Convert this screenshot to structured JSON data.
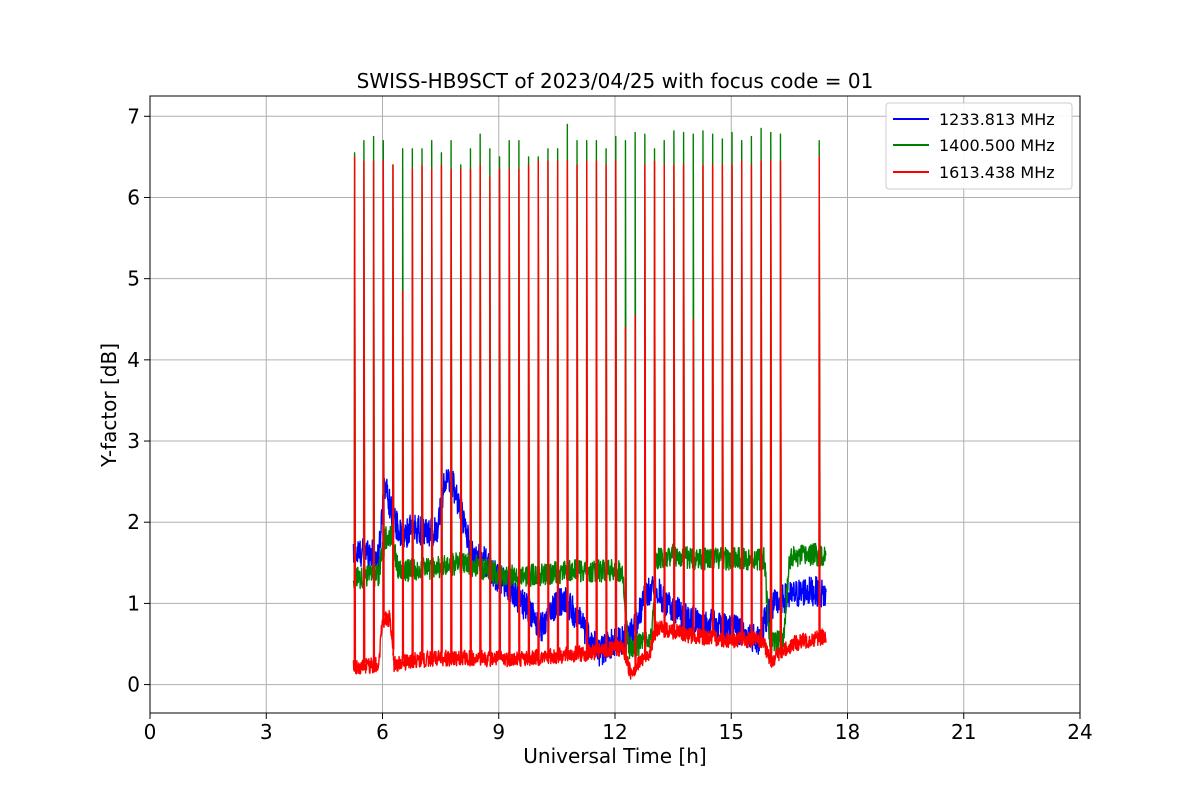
{
  "chart_data": {
    "type": "line",
    "title": "SWISS-HB9SCT of 2023/04/25 with focus code = 01",
    "xlabel": "Universal Time [h]",
    "ylabel": "Y-factor [dB]",
    "xlim": [
      0,
      24
    ],
    "ylim": [
      -0.35,
      7.25
    ],
    "xticks": [
      0,
      3,
      6,
      9,
      12,
      15,
      18,
      21,
      24
    ],
    "yticks": [
      0,
      1,
      2,
      3,
      4,
      5,
      6,
      7
    ],
    "grid": true,
    "legend_position": "top-right",
    "series": [
      {
        "name": "1233.813 MHz",
        "color": "#0000ff",
        "baseline": [
          [
            5.25,
            1.6
          ],
          [
            5.6,
            1.65
          ],
          [
            5.9,
            1.55
          ],
          [
            6.05,
            2.5
          ],
          [
            6.25,
            2.1
          ],
          [
            6.5,
            1.8
          ],
          [
            6.8,
            1.95
          ],
          [
            7.1,
            1.85
          ],
          [
            7.4,
            1.9
          ],
          [
            7.6,
            2.5
          ],
          [
            7.8,
            2.5
          ],
          [
            8.05,
            2.1
          ],
          [
            8.3,
            1.6
          ],
          [
            8.6,
            1.55
          ],
          [
            8.9,
            1.35
          ],
          [
            9.2,
            1.25
          ],
          [
            9.5,
            1.05
          ],
          [
            9.8,
            0.9
          ],
          [
            10.1,
            0.7
          ],
          [
            10.4,
            0.95
          ],
          [
            10.7,
            1.05
          ],
          [
            11.0,
            0.85
          ],
          [
            11.3,
            0.6
          ],
          [
            11.6,
            0.4
          ],
          [
            11.9,
            0.5
          ],
          [
            12.2,
            0.55
          ],
          [
            12.5,
            0.7
          ],
          [
            12.75,
            1.05
          ],
          [
            13.0,
            1.25
          ],
          [
            13.3,
            1.0
          ],
          [
            13.6,
            0.9
          ],
          [
            13.9,
            0.8
          ],
          [
            14.2,
            0.75
          ],
          [
            14.5,
            0.75
          ],
          [
            14.8,
            0.7
          ],
          [
            15.1,
            0.7
          ],
          [
            15.4,
            0.6
          ],
          [
            15.7,
            0.55
          ],
          [
            16.0,
            0.95
          ],
          [
            16.3,
            1.05
          ],
          [
            16.6,
            1.1
          ],
          [
            16.9,
            1.15
          ],
          [
            17.2,
            1.15
          ],
          [
            17.45,
            1.1
          ]
        ],
        "noise": 0.18
      },
      {
        "name": "1400.500 MHz",
        "color": "#008000",
        "baseline": [
          [
            5.25,
            1.3
          ],
          [
            5.9,
            1.35
          ],
          [
            6.05,
            1.8
          ],
          [
            6.25,
            1.85
          ],
          [
            6.4,
            1.4
          ],
          [
            7.0,
            1.42
          ],
          [
            7.5,
            1.45
          ],
          [
            8.0,
            1.5
          ],
          [
            8.5,
            1.45
          ],
          [
            9.0,
            1.35
          ],
          [
            9.5,
            1.35
          ],
          [
            10.0,
            1.35
          ],
          [
            10.5,
            1.38
          ],
          [
            11.0,
            1.4
          ],
          [
            11.5,
            1.4
          ],
          [
            12.2,
            1.4
          ],
          [
            12.35,
            0.45
          ],
          [
            12.95,
            0.55
          ],
          [
            13.05,
            1.55
          ],
          [
            13.5,
            1.6
          ],
          [
            14.0,
            1.55
          ],
          [
            14.5,
            1.55
          ],
          [
            15.0,
            1.55
          ],
          [
            15.5,
            1.55
          ],
          [
            15.85,
            1.55
          ],
          [
            16.0,
            0.5
          ],
          [
            16.35,
            0.55
          ],
          [
            16.5,
            1.55
          ],
          [
            17.0,
            1.6
          ],
          [
            17.45,
            1.6
          ]
        ],
        "noise": 0.14,
        "spikes": [
          6.55,
          6.7,
          6.75,
          6.7,
          6.4,
          6.6,
          6.6,
          6.6,
          6.7,
          6.55,
          6.7,
          6.4,
          6.6,
          6.78,
          6.6,
          6.5,
          6.7,
          6.7,
          6.5,
          6.5,
          6.6,
          6.6,
          6.9,
          6.7,
          6.7,
          6.7,
          6.6,
          6.75,
          6.7,
          6.8,
          6.78,
          6.6,
          6.7,
          6.82,
          6.8,
          6.78,
          6.82,
          6.78,
          6.72,
          6.8,
          6.7,
          6.75,
          6.85,
          6.8,
          6.78,
          6.7
        ]
      },
      {
        "name": "1613.438 MHz",
        "color": "#ff0000",
        "baseline": [
          [
            5.25,
            0.2
          ],
          [
            5.5,
            0.22
          ],
          [
            5.9,
            0.25
          ],
          [
            6.0,
            0.8
          ],
          [
            6.2,
            0.82
          ],
          [
            6.3,
            0.25
          ],
          [
            6.8,
            0.3
          ],
          [
            7.5,
            0.33
          ],
          [
            8.5,
            0.32
          ],
          [
            9.5,
            0.32
          ],
          [
            10.5,
            0.35
          ],
          [
            11.5,
            0.4
          ],
          [
            12.2,
            0.45
          ],
          [
            12.4,
            0.15
          ],
          [
            12.9,
            0.4
          ],
          [
            13.05,
            0.7
          ],
          [
            14.0,
            0.6
          ],
          [
            15.0,
            0.55
          ],
          [
            15.8,
            0.55
          ],
          [
            16.0,
            0.3
          ],
          [
            16.3,
            0.4
          ],
          [
            16.6,
            0.5
          ],
          [
            17.0,
            0.55
          ],
          [
            17.45,
            0.6
          ]
        ],
        "noise": 0.1,
        "spikes": [
          6.5,
          6.45,
          6.45,
          6.45,
          6.4,
          4.85,
          6.35,
          6.4,
          6.35,
          6.4,
          6.35,
          6.35,
          6.35,
          6.4,
          6.25,
          6.35,
          6.35,
          6.35,
          6.4,
          6.45,
          6.45,
          6.45,
          6.45,
          6.4,
          6.45,
          6.45,
          6.4,
          6.45,
          4.4,
          4.55,
          6.4,
          6.45,
          6.4,
          6.4,
          6.4,
          4.5,
          6.4,
          6.4,
          6.4,
          6.4,
          6.45,
          6.4,
          6.45,
          6.45,
          6.45,
          6.5
        ],
        "spike_times": [
          5.28,
          5.52,
          5.77,
          6.02,
          6.27,
          6.52,
          6.77,
          7.02,
          7.27,
          7.52,
          7.77,
          8.02,
          8.27,
          8.52,
          8.77,
          9.02,
          9.27,
          9.52,
          9.77,
          10.02,
          10.27,
          10.52,
          10.77,
          11.02,
          11.27,
          11.52,
          11.77,
          12.02,
          12.27,
          12.52,
          12.77,
          13.02,
          13.27,
          13.52,
          13.77,
          14.02,
          14.27,
          14.52,
          14.77,
          15.02,
          15.27,
          15.52,
          15.77,
          16.02,
          16.27,
          17.27
        ]
      }
    ]
  }
}
